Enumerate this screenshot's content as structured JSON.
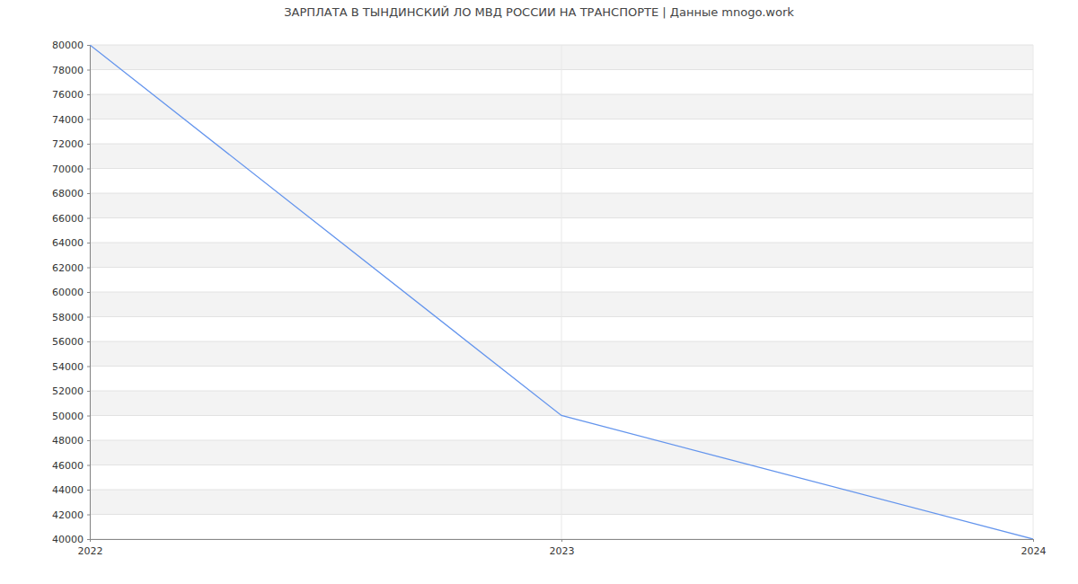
{
  "chart_data": {
    "type": "line",
    "title": "ЗАРПЛАТА В ТЫНДИНСКИЙ ЛО МВД РОССИИ НА ТРАНСПОРТЕ | Данные mnogo.work",
    "categories": [
      "2022",
      "2023",
      "2024"
    ],
    "values": [
      80000,
      50000,
      40000
    ],
    "color": "#6495ed",
    "ylim": [
      40000,
      80000
    ],
    "yticks": [
      40000,
      42000,
      44000,
      46000,
      48000,
      50000,
      52000,
      54000,
      56000,
      58000,
      60000,
      62000,
      64000,
      66000,
      68000,
      70000,
      72000,
      74000,
      76000,
      78000,
      80000
    ],
    "grid": true
  }
}
